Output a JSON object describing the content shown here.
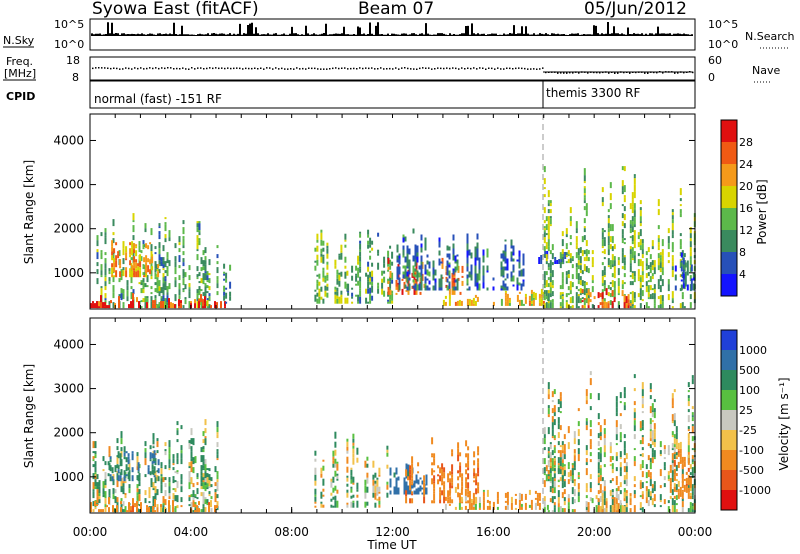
{
  "header": {
    "radar": "Syowa East (fitACF)",
    "beam": "Beam 07",
    "date": "05/Jun/2012"
  },
  "top_panels": {
    "nsky_label": "N.Sky",
    "nsky_top": "10^5",
    "nsky_bottom": "10^0",
    "nsearch_label": "N.Search",
    "nsearch_top": "10^5",
    "nsearch_bottom": "10^0",
    "freq_label_1": "Freq.",
    "freq_label_2": "[MHz]",
    "freq_top": "18",
    "freq_bottom": "8",
    "nave_label": "Nave",
    "nave_top": "60",
    "nave_bottom": "0",
    "cpid_label": "CPID",
    "cpid_mode_1": "normal (fast) -151 RF",
    "cpid_mode_2": "themis 3300 RF"
  },
  "colorbars": {
    "power": {
      "label": "Power [dB]",
      "ticks": [
        "4",
        "8",
        "12",
        "16",
        "20",
        "24",
        "28"
      ],
      "colors": [
        "#1414ff",
        "#2750b8",
        "#3a8a5e",
        "#5cb84a",
        "#d8d400",
        "#f59a1a",
        "#f05a14",
        "#e01010"
      ]
    },
    "velocity": {
      "label": "Velocity [m s⁻¹]",
      "ticks": [
        "1000",
        "500",
        "100",
        "25",
        "-25",
        "-100",
        "-500",
        "-1000"
      ],
      "colors": [
        "#2040d8",
        "#3070a8",
        "#2e8a5e",
        "#58c040",
        "#c8c8c0",
        "#f2c14a",
        "#f08a20",
        "#e8561a",
        "#e01010"
      ]
    }
  },
  "axes": {
    "ylabel": "Slant Range [km]",
    "xlabel": "Time UT",
    "yticks": [
      "1000",
      "2000",
      "3000",
      "4000"
    ],
    "xticks": [
      "00:00",
      "04:00",
      "08:00",
      "12:00",
      "16:00",
      "20:00",
      "00:00"
    ]
  },
  "chart_data": [
    {
      "type": "heatmap",
      "title": "Power",
      "x_range_hours": [
        0,
        24
      ],
      "ylim_km": [
        180,
        4600
      ],
      "ylabel": "Slant Range [km]",
      "xlabel": "Time UT",
      "colorbar_label": "Power [dB]",
      "regions": [
        {
          "t0": 0.1,
          "t1": 5.1,
          "r0": 200,
          "r1": 2250,
          "v": 12
        },
        {
          "t0": 0.6,
          "t1": 2.8,
          "r0": 900,
          "r1": 1700,
          "v": 22
        },
        {
          "t0": 0.0,
          "t1": 5.5,
          "r0": 200,
          "r1": 420,
          "v": 28
        },
        {
          "t0": 5.2,
          "t1": 5.6,
          "r0": 300,
          "r1": 1600,
          "v": 10
        },
        {
          "t0": 8.9,
          "t1": 10.3,
          "r0": 300,
          "r1": 2000,
          "v": 14
        },
        {
          "t0": 10.2,
          "t1": 12.0,
          "r0": 300,
          "r1": 2000,
          "v": 12
        },
        {
          "t0": 11.8,
          "t1": 14.8,
          "r0": 500,
          "r1": 1300,
          "v": 26
        },
        {
          "t0": 12.0,
          "t1": 17.2,
          "r0": 600,
          "r1": 2050,
          "v": 8
        },
        {
          "t0": 14.0,
          "t1": 18.2,
          "r0": 250,
          "r1": 600,
          "v": 20
        },
        {
          "t0": 17.7,
          "t1": 18.9,
          "r0": 1200,
          "r1": 1500,
          "v": 4
        },
        {
          "t0": 18.0,
          "t1": 24.0,
          "r0": 200,
          "r1": 3400,
          "v": 14
        },
        {
          "t0": 19.5,
          "t1": 21.5,
          "r0": 200,
          "r1": 600,
          "v": 26
        },
        {
          "t0": 23.2,
          "t1": 24.0,
          "r0": 600,
          "r1": 1700,
          "v": 6
        }
      ]
    },
    {
      "type": "heatmap",
      "title": "Velocity",
      "x_range_hours": [
        0,
        24
      ],
      "ylim_km": [
        180,
        4600
      ],
      "ylabel": "Slant Range [km]",
      "xlabel": "Time UT",
      "colorbar_label": "Velocity [m s⁻¹]",
      "regions": [
        {
          "t0": 0.1,
          "t1": 5.1,
          "r0": 200,
          "r1": 2250,
          "v": 100
        },
        {
          "t0": 0.7,
          "t1": 2.8,
          "r0": 900,
          "r1": 1700,
          "v": 500
        },
        {
          "t0": 0.0,
          "t1": 5.5,
          "r0": 200,
          "r1": 450,
          "v": -300
        },
        {
          "t0": 8.9,
          "t1": 12.0,
          "r0": 300,
          "r1": 2000,
          "v": 60
        },
        {
          "t0": 11.8,
          "t1": 13.5,
          "r0": 600,
          "r1": 1300,
          "v": 700
        },
        {
          "t0": 12.5,
          "t1": 15.5,
          "r0": 400,
          "r1": 1900,
          "v": -400
        },
        {
          "t0": 14.0,
          "t1": 18.2,
          "r0": 250,
          "r1": 700,
          "v": -150
        },
        {
          "t0": 18.0,
          "t1": 19.3,
          "r0": 900,
          "r1": 1500,
          "v": 0
        },
        {
          "t0": 18.0,
          "t1": 24.0,
          "r0": 200,
          "r1": 3400,
          "v": 40
        },
        {
          "t0": 19.5,
          "t1": 21.5,
          "r0": 200,
          "r1": 700,
          "v": -200
        },
        {
          "t0": 23.0,
          "t1": 24.0,
          "r0": 500,
          "r1": 1700,
          "v": -300
        }
      ]
    }
  ]
}
